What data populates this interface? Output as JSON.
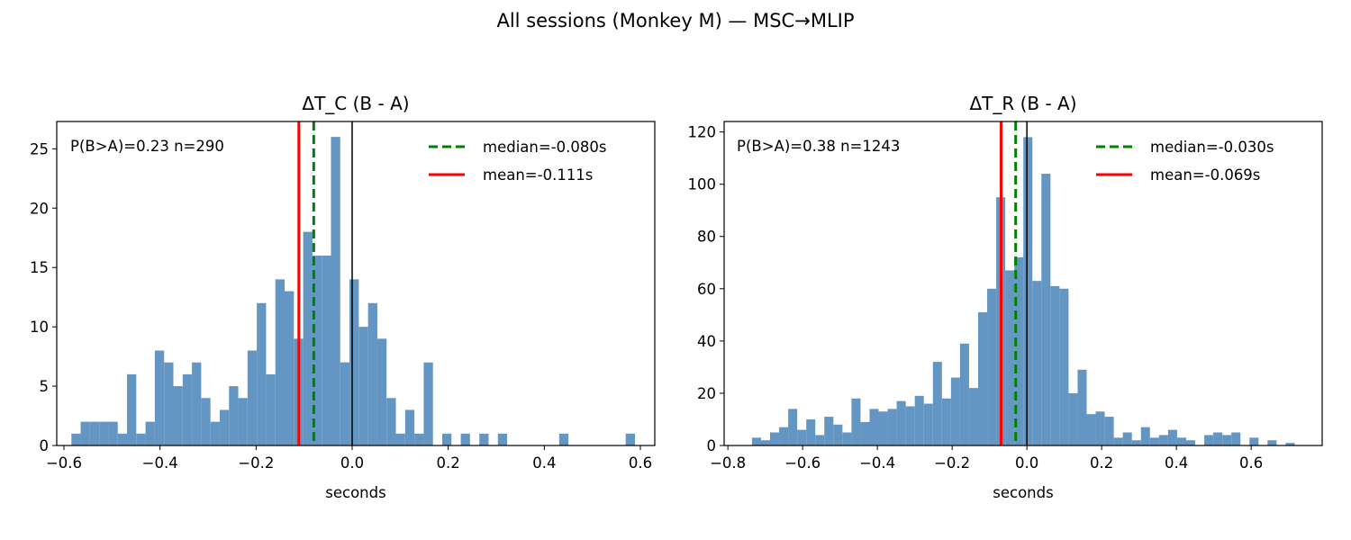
{
  "title": "All sessions (Monkey M) — MSC→MLIP",
  "colors": {
    "bar": "#6496c3",
    "median": "#008000",
    "mean": "#ff0000",
    "zero_line": "#000000"
  },
  "chart_data": [
    {
      "type": "bar",
      "title": "ΔT_C (B - A)",
      "xlabel": "seconds",
      "ylabel": "",
      "xlim": [
        -0.615,
        0.63
      ],
      "ylim": [
        0,
        27.3
      ],
      "xticks": [
        -0.6,
        -0.4,
        -0.2,
        0.0,
        0.2,
        0.4,
        0.6
      ],
      "xtick_labels": [
        "−0.6",
        "−0.4",
        "−0.2",
        "0.0",
        "0.2",
        "0.4",
        "0.6"
      ],
      "yticks": [
        0,
        5,
        10,
        15,
        20,
        25
      ],
      "ytick_labels": [
        "0",
        "5",
        "10",
        "15",
        "20",
        "25"
      ],
      "bin_start": -0.5845,
      "bin_width": 0.0193,
      "counts": [
        1,
        2,
        2,
        2,
        2,
        1,
        6,
        1,
        2,
        8,
        7,
        5,
        6,
        7,
        4,
        2,
        3,
        5,
        4,
        8,
        12,
        6,
        14,
        13,
        9,
        18,
        16,
        16,
        26,
        7,
        14,
        10,
        12,
        9,
        4,
        1,
        3,
        1,
        7,
        0,
        1,
        0,
        1,
        0,
        1,
        0,
        1,
        0,
        0,
        0,
        0,
        0,
        0,
        0,
        0,
        0,
        0,
        0,
        0,
        0,
        0,
        0,
        0,
        0,
        0,
        0,
        0,
        0,
        0,
        0,
        0,
        0
      ],
      "sparse_bins": [
        {
          "x": 0.431,
          "count": 1
        },
        {
          "x": 0.5695,
          "count": 1
        }
      ],
      "median": -0.08,
      "mean": -0.111,
      "annotation": "P(B>A)=0.23  n=290",
      "legend": {
        "position": "top-right",
        "median_label": "median=-0.080s",
        "mean_label": "mean=-0.111s"
      }
    },
    {
      "type": "bar",
      "title": "ΔT_R (B - A)",
      "xlabel": "seconds",
      "ylabel": "",
      "xlim": [
        -0.81,
        0.79
      ],
      "ylim": [
        0,
        124
      ],
      "xticks": [
        -0.8,
        -0.6,
        -0.4,
        -0.2,
        0.0,
        0.2,
        0.4,
        0.6
      ],
      "xtick_labels": [
        "−0.8",
        "−0.6",
        "−0.4",
        "−0.2",
        "0.0",
        "0.2",
        "0.4",
        "0.6"
      ],
      "yticks": [
        0,
        20,
        40,
        60,
        80,
        100,
        120
      ],
      "ytick_labels": [
        "0",
        "20",
        "40",
        "60",
        "80",
        "100",
        "120"
      ],
      "bin_start": -0.7355,
      "bin_width": 0.0242,
      "counts": [
        3,
        2,
        5,
        7,
        14,
        6,
        10,
        4,
        11,
        8,
        5,
        18,
        9,
        14,
        13,
        14,
        17,
        15,
        19,
        16,
        32,
        18,
        26,
        39,
        22,
        51,
        60,
        95,
        67,
        72,
        118,
        63,
        104,
        61,
        60,
        20,
        29,
        12,
        13,
        11,
        3,
        5,
        2,
        7,
        3,
        4,
        6,
        3,
        2,
        0,
        4,
        5,
        4,
        5,
        0,
        3,
        0,
        2,
        0,
        1,
        0
      ],
      "median": -0.03,
      "mean": -0.069,
      "annotation": "P(B>A)=0.38  n=1243",
      "legend": {
        "position": "top-right",
        "median_label": "median=-0.030s",
        "mean_label": "mean=-0.069s"
      }
    }
  ]
}
